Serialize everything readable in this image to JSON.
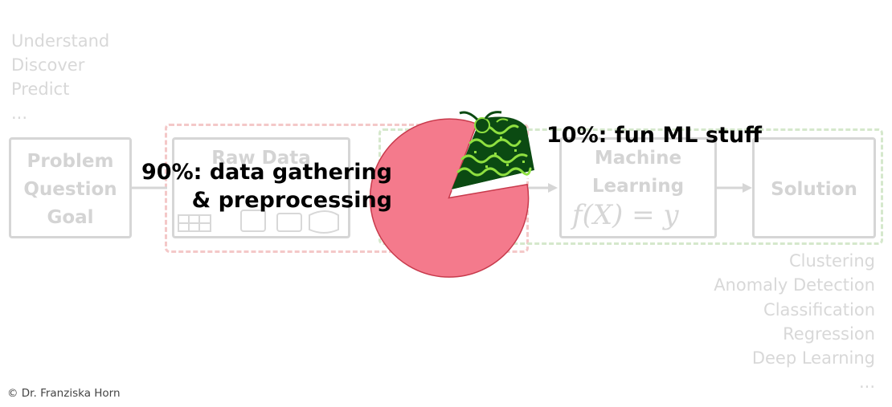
{
  "goals": [
    "Understand",
    "Discover",
    "Predict",
    "..."
  ],
  "boxes": {
    "problem": [
      "Problem",
      "Question",
      "Goal"
    ],
    "raw_data": "Raw Data",
    "machine_learning": [
      "Machine",
      "Learning"
    ],
    "solution": "Solution"
  },
  "formula": "f(X) = y",
  "overlay": {
    "data_gathering_line1": "90%: data gathering",
    "data_gathering_line2": "& preprocessing",
    "fun_ml": "10%: fun ML stuff"
  },
  "tasks": [
    "Clustering",
    "Anomaly Detection",
    "Classification",
    "Regression",
    "Deep Learning"
  ],
  "tasks_more": "...",
  "copyright": "© Dr. Franziska Horn",
  "colors": {
    "pie_fill": "#f47a8c",
    "pie_stroke": "#c83a4c",
    "cake_dark": "#0b4a12",
    "cake_light": "#8fe040",
    "faded_gray": "#d6d6d6"
  },
  "pie": {
    "large_share_percent": 90,
    "small_share_percent": 10
  }
}
